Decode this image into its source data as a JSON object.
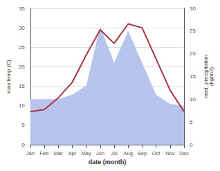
{
  "chart_data": {
    "type": "line",
    "categories": [
      "Jan",
      "Feb",
      "Mar",
      "Apr",
      "May",
      "Jun",
      "Jul",
      "Aug",
      "Sep",
      "Oct",
      "Nov",
      "Dec"
    ],
    "xlabel": "date (month)",
    "ylabel": "max temp (C)",
    "y2label": "med. precipitation\n(kg/m2)",
    "series": [
      {
        "type": "area",
        "axis": "y2",
        "color": "#b8c4ee",
        "values": [
          10.0,
          10.0,
          10.0,
          11.0,
          13.0,
          26.0,
          18.0,
          25.0,
          18.0,
          11.0,
          9.0,
          8.5
        ]
      },
      {
        "type": "line",
        "color": "#aa3344",
        "values": [
          8.5,
          9.0,
          12.0,
          16.0,
          23.0,
          29.5,
          26.0,
          31.0,
          30.0,
          22.0,
          14.0,
          8.5
        ]
      }
    ],
    "ylim": [
      0,
      35
    ],
    "yticks": [
      0,
      5,
      10,
      15,
      20,
      25,
      30,
      35
    ],
    "y2lim": [
      0,
      30
    ],
    "y2ticks": [
      0,
      5,
      10,
      15,
      20,
      25,
      30
    ],
    "grid": true
  }
}
